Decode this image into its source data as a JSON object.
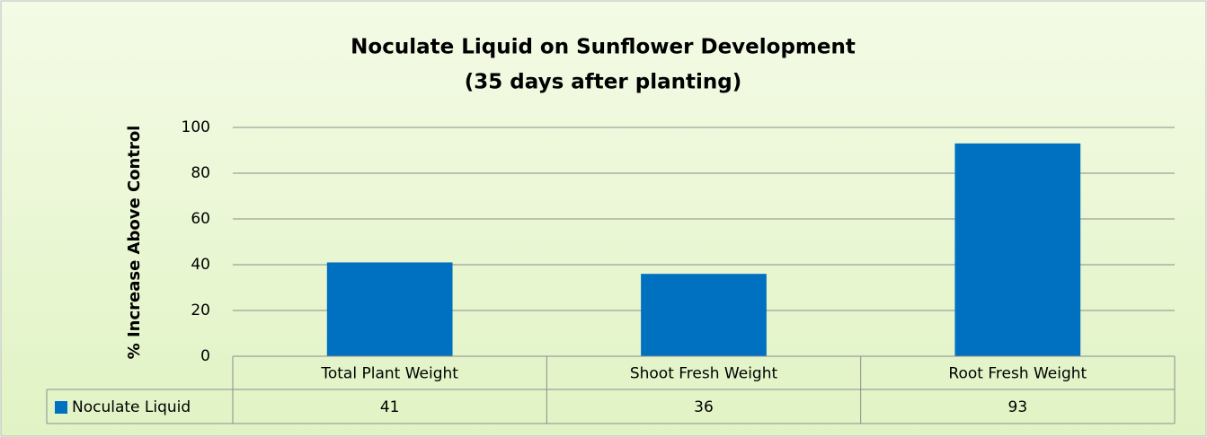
{
  "chart_data": {
    "type": "bar",
    "title": "Noculate Liquid on Sunflower Development",
    "subtitle": "(35 days after planting)",
    "y_axis_label": "% Increase Above Control",
    "categories": [
      "Total Plant Weight",
      "Shoot Fresh Weight",
      "Root Fresh Weight"
    ],
    "series": [
      {
        "name": "Noculate Liquid",
        "color": "#0070c0",
        "values": [
          41,
          36,
          93
        ]
      }
    ],
    "ylim": [
      0,
      100
    ],
    "yticks": [
      0,
      20,
      40,
      60,
      80,
      100
    ],
    "grid": true,
    "data_table": true
  }
}
